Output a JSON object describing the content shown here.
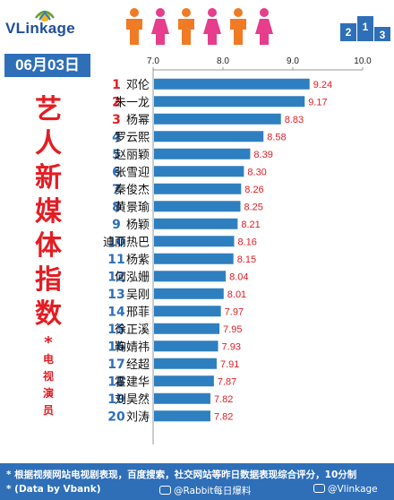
{
  "brand": {
    "name": "VLinkage"
  },
  "date": "06月03日",
  "title_chars": [
    "艺",
    "人",
    "新",
    "媒",
    "体",
    "指",
    "数"
  ],
  "title_star": "*",
  "subtitle_chars": [
    "电",
    "视",
    "演",
    "员"
  ],
  "colors": {
    "bar": "#2e7fc0",
    "rank": "#e51c23",
    "value": "#e51c23",
    "accent": "#2e6fb8",
    "title": "#e51c23"
  },
  "icons": [
    "sun-logo-icon",
    "people-icon",
    "podium-icon"
  ],
  "chart_data": {
    "type": "bar",
    "orientation": "horizontal",
    "xlim": [
      7.0,
      10.0
    ],
    "ticks": [
      "7.0",
      "8.0",
      "9.0",
      "10.0"
    ],
    "tick_values": [
      7.0,
      8.0,
      9.0,
      10.0
    ],
    "grid": false,
    "categories": [
      "邓伦",
      "朱一龙",
      "杨幂",
      "罗云熙",
      "赵丽颖",
      "张雪迎",
      "秦俊杰",
      "黄景瑜",
      "杨颖",
      "迪丽热巴",
      "杨紫",
      "何泓姗",
      "吴刚",
      "邢菲",
      "徐正溪",
      "鞠婧祎",
      "经超",
      "霍建华",
      "刘昊然",
      "刘涛"
    ],
    "ranks": [
      "1",
      "2",
      "3",
      "4",
      "5",
      "6",
      "7",
      "8",
      "9",
      "10",
      "11",
      "12",
      "13",
      "14",
      "15",
      "16",
      "17",
      "18",
      "19",
      "20"
    ],
    "values": [
      9.24,
      9.17,
      8.83,
      8.58,
      8.39,
      8.3,
      8.26,
      8.25,
      8.21,
      8.16,
      8.15,
      8.04,
      8.01,
      7.97,
      7.95,
      7.93,
      7.91,
      7.87,
      7.82,
      7.82
    ],
    "value_labels": [
      "9.24",
      "9.17",
      "8.83",
      "8.58",
      "8.39",
      "8.30",
      "8.26",
      "8.25",
      "8.21",
      "8.16",
      "8.15",
      "8.04",
      "8.01",
      "7.97",
      "7.95",
      "7.93",
      "7.91",
      "7.87",
      "7.82",
      "7.82"
    ]
  },
  "footer": {
    "note1": "* 根据视频网站电视剧表现，百度搜索，社交网站等昨日数据表现综合评分，10分制",
    "note2": "* (Data by Vbank)",
    "watermark1": "@Rabbit每日爆料",
    "watermark2": "@Vlinkage"
  }
}
